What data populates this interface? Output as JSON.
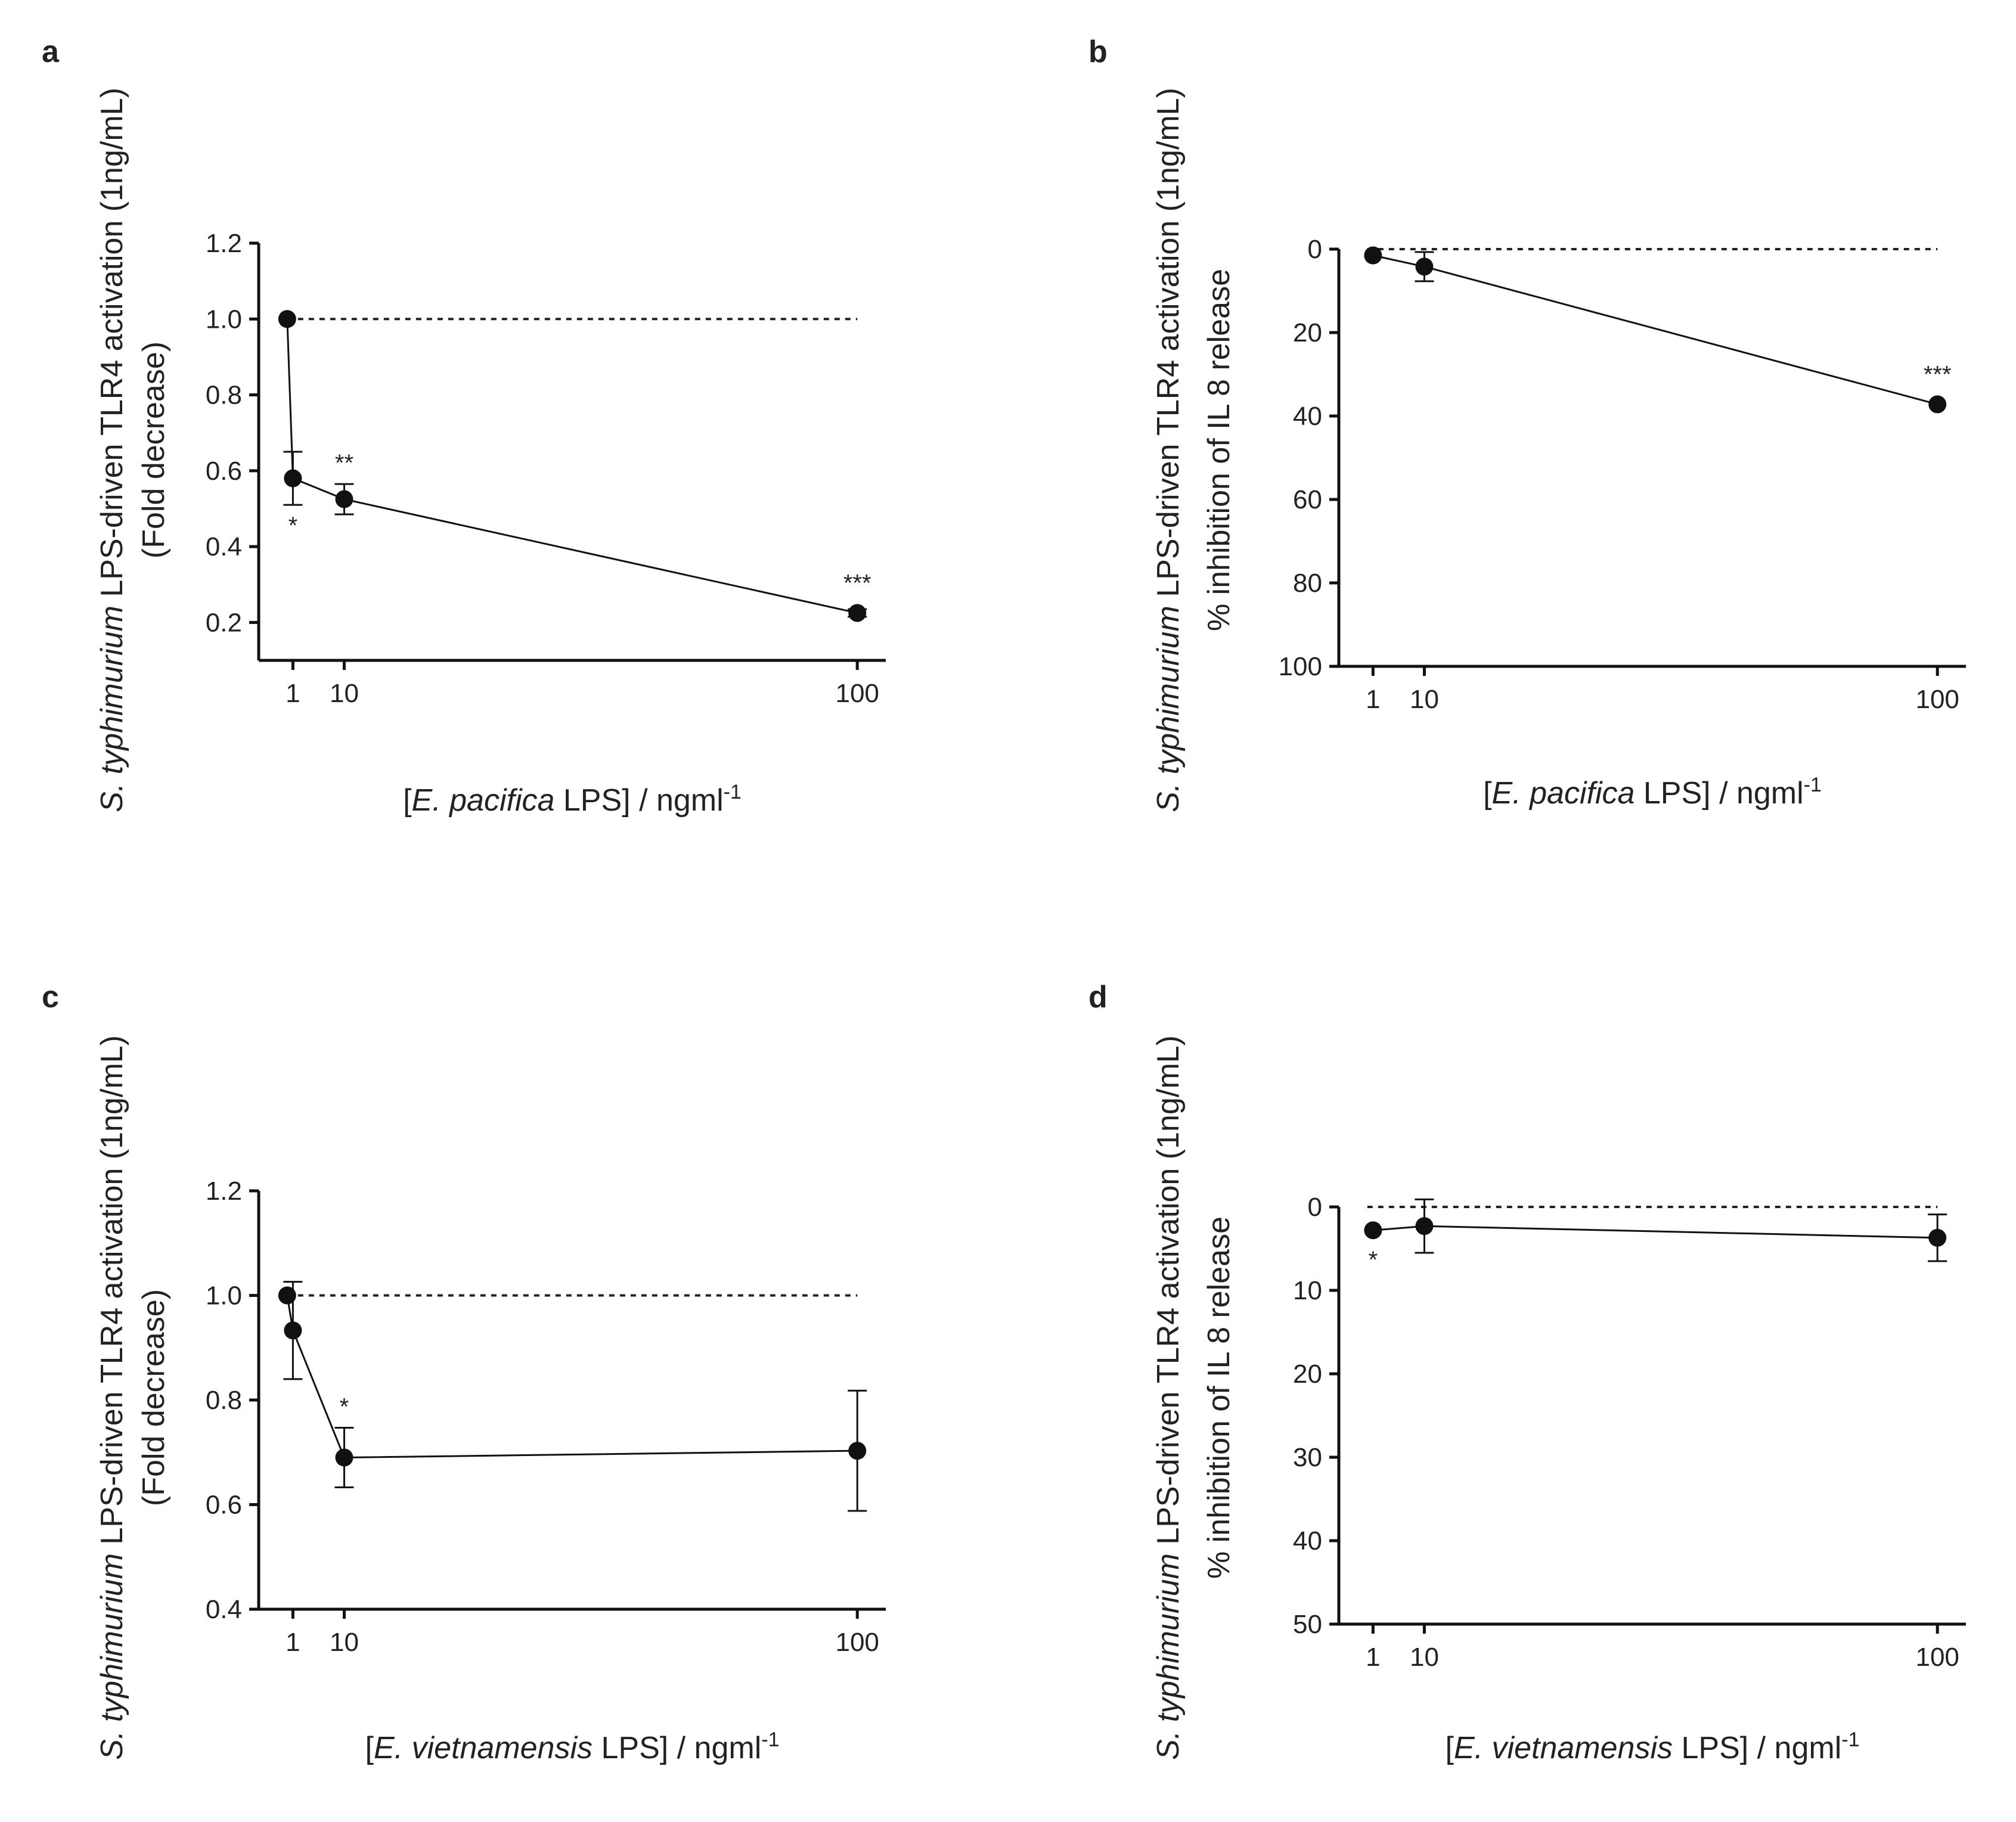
{
  "figure": {
    "panels": [
      "a",
      "b",
      "c",
      "d"
    ]
  },
  "chart_data": [
    {
      "id": "a",
      "type": "line",
      "panel_label": "a",
      "ylabel": {
        "italic": "S. typhimurium",
        "rest": " LPS-driven TLR4 activation (1ng/mL)",
        "line2": "(Fold decrease)"
      },
      "xlabel": {
        "pre": "[",
        "italic": "E. pacifica",
        "post": " LPS] / ngml",
        "sup": "-1"
      },
      "x_ticks": [
        1,
        10,
        100
      ],
      "y_ticks": [
        "0.2",
        "0.4",
        "0.6",
        "0.8",
        "1.0",
        "1.2"
      ],
      "y_tick_values": [
        0.2,
        0.4,
        0.6,
        0.8,
        1.0,
        1.2
      ],
      "ylim": [
        0.1,
        1.2
      ],
      "xlim": [
        -5,
        105
      ],
      "y_inverted": false,
      "reference_y": 1.0,
      "reference_x": [
        0,
        100
      ],
      "series": [
        {
          "name": "E. pacifica LPS",
          "x": [
            0,
            1,
            10,
            100
          ],
          "y": [
            1.0,
            0.58,
            0.525,
            0.225
          ],
          "err_low": [
            0,
            0.07,
            0.04,
            0.01
          ],
          "err_high": [
            0,
            0.07,
            0.04,
            0.01
          ],
          "significance": [
            "",
            "*",
            "**",
            "***"
          ],
          "sig_position": [
            "",
            "below",
            "above",
            "above"
          ]
        }
      ]
    },
    {
      "id": "b",
      "type": "line",
      "panel_label": "b",
      "ylabel": {
        "italic": "S. typhimurium",
        "rest": " LPS-driven TLR4 activation (1ng/mL)",
        "line2": "% inhibition of IL 8 release"
      },
      "xlabel": {
        "pre": "[",
        "italic": "E. pacifica",
        "post": " LPS] / ngml",
        "sup": "-1"
      },
      "x_ticks": [
        1,
        10,
        100
      ],
      "y_ticks": [
        "0",
        "20",
        "40",
        "60",
        "80",
        "100"
      ],
      "y_tick_values": [
        0,
        20,
        40,
        60,
        80,
        100
      ],
      "ylim": [
        0,
        100
      ],
      "xlim": [
        -5,
        105
      ],
      "y_inverted": true,
      "reference_y": 0,
      "reference_x": [
        0,
        100
      ],
      "series": [
        {
          "name": "E. pacifica LPS",
          "x": [
            1,
            10,
            100
          ],
          "y": [
            1.5,
            4.2,
            37.2
          ],
          "err_low": [
            0,
            3.5,
            0
          ],
          "err_high": [
            0,
            3.5,
            0
          ],
          "significance": [
            "",
            "",
            "***"
          ],
          "sig_position": [
            "",
            "",
            "above"
          ]
        }
      ]
    },
    {
      "id": "c",
      "type": "line",
      "panel_label": "c",
      "ylabel": {
        "italic": "S. typhimurium",
        "rest": " LPS-driven TLR4 activation (1ng/mL)",
        "line2": "(Fold decrease)"
      },
      "xlabel": {
        "pre": "[",
        "italic": "E.  vietnamensis",
        "post": " LPS] / ngml",
        "sup": "-1"
      },
      "x_ticks": [
        1,
        10,
        100
      ],
      "y_ticks": [
        "0.4",
        "0.6",
        "0.8",
        "1.0",
        "1.2"
      ],
      "y_tick_values": [
        0.4,
        0.6,
        0.8,
        1.0,
        1.2
      ],
      "ylim": [
        0.4,
        1.2
      ],
      "xlim": [
        -5,
        105
      ],
      "y_inverted": false,
      "reference_y": 1.0,
      "reference_x": [
        0,
        100
      ],
      "series": [
        {
          "name": "E. vietnamensis LPS",
          "x": [
            0,
            1,
            10,
            100
          ],
          "y": [
            1.0,
            0.933,
            0.69,
            0.703
          ],
          "err_low": [
            0,
            0.093,
            0.057,
            0.115
          ],
          "err_high": [
            0,
            0.093,
            0.057,
            0.115
          ],
          "significance": [
            "",
            "",
            "*",
            ""
          ],
          "sig_position": [
            "",
            "",
            "above",
            ""
          ]
        }
      ]
    },
    {
      "id": "d",
      "type": "line",
      "panel_label": "d",
      "ylabel": {
        "italic": "S. typhimurium",
        "rest": " LPS-driven TLR4 activation (1ng/mL)",
        "line2": "% inhibition of IL 8 release"
      },
      "xlabel": {
        "pre": "[",
        "italic": "E. vietnamensis",
        "post": " LPS] / ngml",
        "sup": "-1"
      },
      "x_ticks": [
        1,
        10,
        100
      ],
      "y_ticks": [
        "0",
        "10",
        "20",
        "30",
        "40",
        "50"
      ],
      "y_tick_values": [
        0,
        10,
        20,
        30,
        40,
        50
      ],
      "ylim": [
        0,
        50
      ],
      "xlim": [
        -5,
        105
      ],
      "y_inverted": true,
      "reference_y": 0,
      "reference_x": [
        0,
        100
      ],
      "series": [
        {
          "name": "E. vietnamensis LPS",
          "x": [
            1,
            10,
            100
          ],
          "y": [
            2.8,
            2.3,
            3.7
          ],
          "err_low": [
            0,
            3.2,
            2.8
          ],
          "err_high": [
            0,
            3.2,
            2.8
          ],
          "significance": [
            "*",
            "",
            ""
          ],
          "sig_position": [
            "below",
            "",
            ""
          ]
        }
      ]
    }
  ]
}
